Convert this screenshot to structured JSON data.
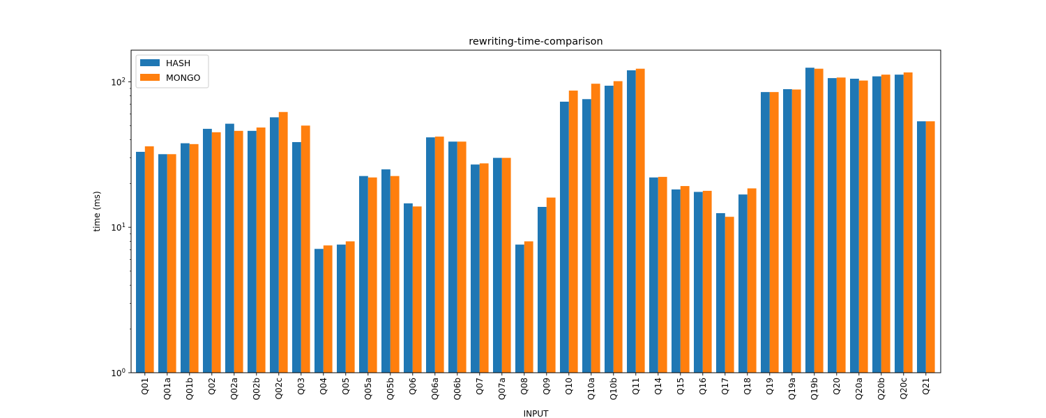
{
  "chart_data": {
    "type": "bar",
    "title": "rewriting-time-comparison",
    "xlabel": "INPUT",
    "ylabel": "time (ms)",
    "yscale": "log",
    "ylim": [
      1,
      165
    ],
    "yticks": [
      {
        "value": 1,
        "label_base": "10",
        "label_exp": "0"
      },
      {
        "value": 10,
        "label_base": "10",
        "label_exp": "1"
      },
      {
        "value": 100,
        "label_base": "10",
        "label_exp": "2"
      }
    ],
    "legend_position": "top-left",
    "categories": [
      "Q01",
      "Q01a",
      "Q01b",
      "Q02",
      "Q02a",
      "Q02b",
      "Q02c",
      "Q03",
      "Q04",
      "Q05",
      "Q05a",
      "Q05b",
      "Q06",
      "Q06a",
      "Q06b",
      "Q07",
      "Q07a",
      "Q08",
      "Q09",
      "Q10",
      "Q10a",
      "Q10b",
      "Q11",
      "Q14",
      "Q15",
      "Q16",
      "Q17",
      "Q18",
      "Q19",
      "Q19a",
      "Q19b",
      "Q20",
      "Q20a",
      "Q20b",
      "Q20c",
      "Q21"
    ],
    "series": [
      {
        "name": "HASH",
        "color": "#1f77b4",
        "values": [
          33,
          31.8,
          37.8,
          47.5,
          51.5,
          46,
          57,
          38.5,
          7.1,
          7.6,
          22.5,
          25,
          14.6,
          41.5,
          38.8,
          27,
          30,
          7.6,
          13.8,
          73,
          76,
          94,
          120,
          22,
          18.2,
          17.5,
          12.5,
          16.8,
          85,
          89,
          125,
          106,
          105,
          109,
          112,
          53.5
        ]
      },
      {
        "name": "MONGO",
        "color": "#ff7f0e",
        "values": [
          36,
          31.8,
          37.3,
          45,
          46,
          48.5,
          62,
          50,
          7.5,
          8,
          22,
          22.5,
          13.9,
          42,
          38.8,
          27.5,
          30,
          8,
          16,
          87,
          97,
          101,
          123,
          22.2,
          19.2,
          17.8,
          11.8,
          18.5,
          85,
          88.5,
          123,
          107,
          102,
          112,
          116,
          53.5
        ]
      }
    ]
  }
}
